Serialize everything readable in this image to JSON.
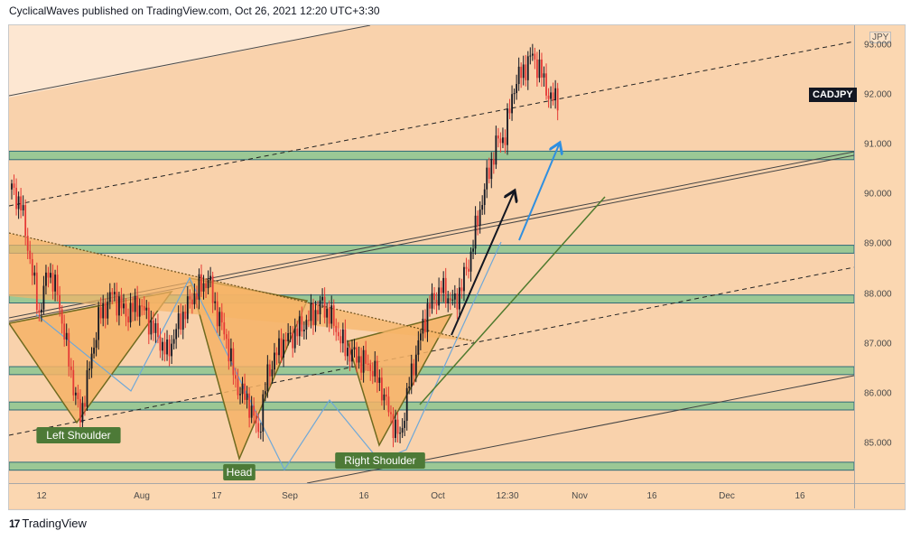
{
  "header": {
    "publish_line": "CyclicalWaves published on TradingView.com, Oct 26, 2021 12:20 UTC+3:30"
  },
  "footer": {
    "brand": "TradingView",
    "logo": "17"
  },
  "chart_data": {
    "type": "candlestick",
    "symbol": "CADJPY",
    "currency": "JPY",
    "y_range": [
      84.2,
      93.4
    ],
    "y_ticks": [
      85.0,
      86.0,
      87.0,
      88.0,
      89.0,
      90.0,
      91.0,
      92.0,
      93.0
    ],
    "y_tick_labels": [
      "85.000",
      "86.000",
      "87.000",
      "88.000",
      "89.000",
      "90.000",
      "91.000",
      "92.000",
      "93.000"
    ],
    "x_ticks": [
      "12",
      "Aug",
      "17",
      "Sep",
      "16",
      "Oct",
      "12:30",
      "Nov",
      "16",
      "Dec",
      "16"
    ],
    "price_path": [
      [
        0,
        90.1
      ],
      [
        4,
        89.8
      ],
      [
        8,
        88.7
      ],
      [
        12,
        87.6
      ],
      [
        16,
        88.5
      ],
      [
        20,
        88.0
      ],
      [
        26,
        86.4
      ],
      [
        30,
        85.5
      ],
      [
        34,
        86.5
      ],
      [
        38,
        87.5
      ],
      [
        44,
        88.0
      ],
      [
        50,
        87.6
      ],
      [
        56,
        87.8
      ],
      [
        62,
        87.3
      ],
      [
        68,
        86.8
      ],
      [
        74,
        87.5
      ],
      [
        80,
        88.0
      ],
      [
        86,
        88.3
      ],
      [
        90,
        87.6
      ],
      [
        94,
        87.1
      ],
      [
        98,
        86.2
      ],
      [
        104,
        85.8
      ],
      [
        108,
        85.2
      ],
      [
        112,
        86.4
      ],
      [
        118,
        87.0
      ],
      [
        124,
        87.2
      ],
      [
        130,
        87.5
      ],
      [
        136,
        87.8
      ],
      [
        140,
        87.5
      ],
      [
        146,
        86.9
      ],
      [
        152,
        86.7
      ],
      [
        158,
        86.5
      ],
      [
        162,
        86.1
      ],
      [
        166,
        85.5
      ],
      [
        170,
        85.1
      ],
      [
        174,
        86.2
      ],
      [
        178,
        87.0
      ],
      [
        182,
        87.7
      ],
      [
        188,
        88.1
      ],
      [
        194,
        87.8
      ],
      [
        200,
        88.6
      ],
      [
        204,
        89.5
      ],
      [
        208,
        90.3
      ],
      [
        212,
        91.0
      ],
      [
        216,
        91.2
      ],
      [
        220,
        92.2
      ],
      [
        224,
        92.5
      ],
      [
        228,
        92.8
      ],
      [
        232,
        92.4
      ],
      [
        236,
        91.9
      ],
      [
        240,
        92.0
      ]
    ],
    "horizontal_zones": [
      {
        "low": 90.7,
        "high": 90.87
      },
      {
        "low": 88.82,
        "high": 88.98
      },
      {
        "low": 87.82,
        "high": 87.98
      },
      {
        "low": 86.38,
        "high": 86.54
      },
      {
        "low": 85.67,
        "high": 85.83
      },
      {
        "low": 84.46,
        "high": 84.62
      }
    ],
    "annotations": {
      "left_shoulder": "Left Shoulder",
      "head": "Head",
      "right_shoulder": "Right Shoulder"
    },
    "colors": {
      "background": "#f9d2ac",
      "candle_up": "#131722",
      "candle_down": "#e53935",
      "zone_fill": "#9bc895",
      "zone_border": "#2e6b78",
      "triangle_fill": "#f6b366",
      "triangle_stroke": "#6f6a1f",
      "green_line": "#4f7a2e",
      "blue_arrow": "#2f8fe0",
      "label_bg": "#4d7a37",
      "label_text": "#ffffff"
    }
  }
}
